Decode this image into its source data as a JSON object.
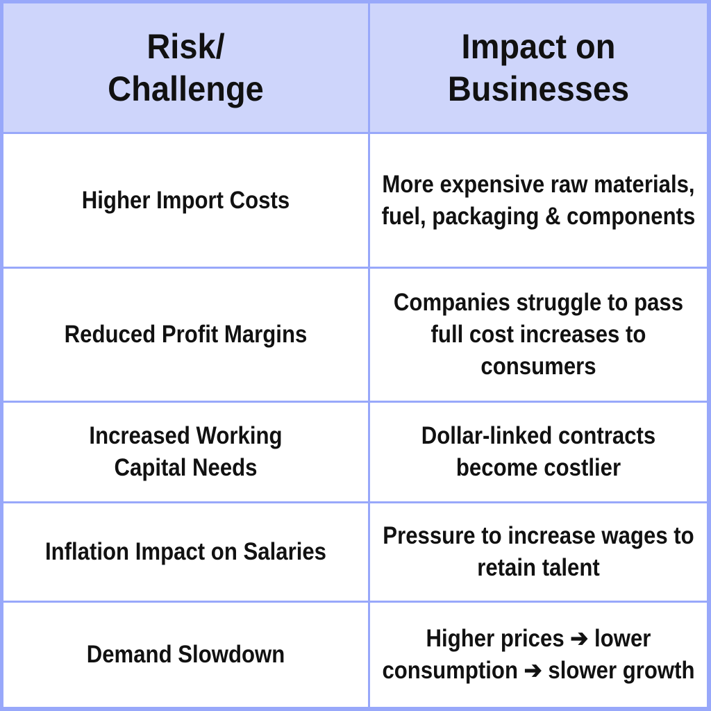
{
  "title": "Risk/Challenge vs Impact on Businesses comparison table",
  "colors": {
    "frame_border": "#98a8fa",
    "header_bg": "#ced5fb",
    "cell_bg": "#ffffff",
    "text": "#111111"
  },
  "table": {
    "headers": [
      {
        "label": "Risk/Challenge",
        "lines": [
          "Risk/",
          "Challenge"
        ]
      },
      {
        "label": "Impact on Businesses",
        "lines": [
          "Impact on",
          "Businesses"
        ]
      }
    ],
    "rows": [
      {
        "risk": [
          "Higher Import Costs"
        ],
        "impact": [
          "More expensive raw materials,",
          "fuel, packaging & components"
        ]
      },
      {
        "risk": [
          "Reduced Profit Margins"
        ],
        "impact": [
          "Companies struggle to pass",
          "full cost increases to",
          "consumers"
        ]
      },
      {
        "risk": [
          "Increased Working",
          "Capital Needs"
        ],
        "impact": [
          "Dollar-linked contracts",
          "become costlier"
        ]
      },
      {
        "risk": [
          "Inflation Impact on Salaries"
        ],
        "impact": [
          "Pressure to increase wages to",
          "retain talent"
        ]
      },
      {
        "risk": [
          "Demand Slowdown"
        ],
        "impact": [
          "Higher prices ➔ lower",
          "consumption ➔ slower growth"
        ]
      }
    ]
  }
}
